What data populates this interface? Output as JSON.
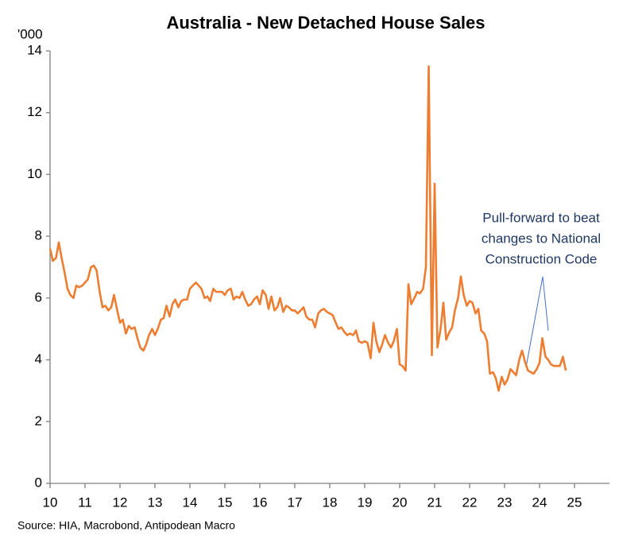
{
  "chart_data": {
    "type": "line",
    "title": "Australia - New Detached House Sales",
    "y_label": "'000",
    "source": "Source: HIA, Macrobond, Antipodean Macro",
    "annotation": [
      "Pull-forward to beat",
      "changes to National",
      "Construction Code"
    ],
    "xlim": [
      10,
      26
    ],
    "xticks": [
      10,
      11,
      12,
      13,
      14,
      15,
      16,
      17,
      18,
      19,
      20,
      21,
      22,
      23,
      24,
      25
    ],
    "ylim": [
      0,
      14
    ],
    "yticks": [
      0,
      2,
      4,
      6,
      8,
      10,
      12,
      14
    ],
    "grid": false,
    "x": [
      10,
      10.08,
      10.17,
      10.25,
      10.33,
      10.42,
      10.5,
      10.58,
      10.67,
      10.75,
      10.83,
      10.92,
      11,
      11.08,
      11.17,
      11.25,
      11.33,
      11.42,
      11.5,
      11.58,
      11.67,
      11.75,
      11.83,
      11.92,
      12,
      12.08,
      12.17,
      12.25,
      12.33,
      12.42,
      12.5,
      12.58,
      12.67,
      12.75,
      12.83,
      12.92,
      13,
      13.08,
      13.17,
      13.25,
      13.33,
      13.42,
      13.5,
      13.58,
      13.67,
      13.75,
      13.83,
      13.92,
      14,
      14.08,
      14.17,
      14.25,
      14.33,
      14.42,
      14.5,
      14.58,
      14.67,
      14.75,
      14.83,
      14.92,
      15,
      15.08,
      15.17,
      15.25,
      15.33,
      15.42,
      15.5,
      15.58,
      15.67,
      15.75,
      15.83,
      15.92,
      16,
      16.08,
      16.17,
      16.25,
      16.33,
      16.42,
      16.5,
      16.58,
      16.67,
      16.75,
      16.83,
      16.92,
      17,
      17.08,
      17.17,
      17.25,
      17.33,
      17.42,
      17.5,
      17.58,
      17.67,
      17.75,
      17.83,
      17.92,
      18,
      18.08,
      18.17,
      18.25,
      18.33,
      18.42,
      18.5,
      18.58,
      18.67,
      18.75,
      18.83,
      18.92,
      19,
      19.08,
      19.17,
      19.25,
      19.33,
      19.42,
      19.5,
      19.58,
      19.67,
      19.75,
      19.83,
      19.92,
      20,
      20.08,
      20.17,
      20.25,
      20.33,
      20.42,
      20.5,
      20.58,
      20.67,
      20.75,
      20.83,
      20.92,
      21,
      21.08,
      21.17,
      21.25,
      21.33,
      21.42,
      21.5,
      21.58,
      21.67,
      21.75,
      21.83,
      21.92,
      22,
      22.08,
      22.17,
      22.25,
      22.33,
      22.42,
      22.5,
      22.58,
      22.67,
      22.75,
      22.83,
      22.92,
      23,
      23.08,
      23.17,
      23.25,
      23.33,
      23.42,
      23.5,
      23.58,
      23.67,
      23.75,
      23.83,
      23.92,
      24,
      24.08,
      24.17,
      24.25,
      24.33,
      24.42,
      24.5,
      24.58,
      24.67,
      24.75
    ],
    "series": [
      {
        "name": "New Detached House Sales",
        "color": "#ed7d31",
        "values": [
          7.6,
          7.2,
          7.3,
          7.8,
          7.3,
          6.8,
          6.3,
          6.1,
          6.0,
          6.4,
          6.35,
          6.4,
          6.5,
          6.6,
          7.0,
          7.05,
          6.9,
          6.2,
          5.7,
          5.75,
          5.6,
          5.7,
          6.1,
          5.6,
          5.2,
          5.3,
          4.85,
          5.1,
          5.0,
          5.05,
          4.7,
          4.4,
          4.3,
          4.5,
          4.8,
          5.0,
          4.8,
          5.0,
          5.3,
          5.35,
          5.75,
          5.4,
          5.8,
          5.95,
          5.7,
          5.9,
          5.95,
          5.95,
          6.3,
          6.4,
          6.5,
          6.4,
          6.3,
          6.0,
          6.05,
          5.9,
          6.3,
          6.2,
          6.2,
          6.2,
          6.1,
          6.25,
          6.3,
          5.95,
          6.05,
          6.0,
          6.2,
          5.95,
          5.75,
          5.8,
          5.95,
          6.05,
          5.8,
          6.25,
          6.1,
          5.65,
          6.05,
          5.6,
          5.7,
          6.0,
          5.55,
          5.75,
          5.7,
          5.6,
          5.6,
          5.5,
          5.6,
          5.7,
          5.4,
          5.3,
          5.3,
          5.05,
          5.5,
          5.6,
          5.65,
          5.55,
          5.5,
          5.45,
          5.2,
          5.0,
          5.05,
          4.9,
          4.8,
          4.85,
          4.8,
          4.95,
          4.6,
          4.55,
          4.6,
          4.55,
          4.05,
          5.2,
          4.6,
          4.25,
          4.5,
          4.8,
          4.55,
          4.4,
          4.6,
          5.0,
          3.85,
          3.8,
          3.65,
          6.45,
          5.8,
          6.0,
          6.2,
          6.15,
          6.3,
          7.0,
          13.5,
          4.15,
          9.7,
          4.4,
          5.0,
          5.85,
          4.65,
          4.9,
          5.05,
          5.6,
          6.0,
          6.7,
          6.1,
          5.75,
          5.9,
          5.85,
          5.5,
          5.65,
          4.95,
          4.85,
          4.6,
          3.55,
          3.6,
          3.4,
          3.0,
          3.45,
          3.2,
          3.35,
          3.7,
          3.6,
          3.5,
          4.0,
          4.3,
          3.95,
          3.65,
          3.6,
          3.55,
          3.7,
          3.9,
          4.7,
          4.1,
          4.0,
          3.85,
          3.8,
          3.8,
          3.8,
          4.1,
          3.65
        ]
      }
    ]
  }
}
